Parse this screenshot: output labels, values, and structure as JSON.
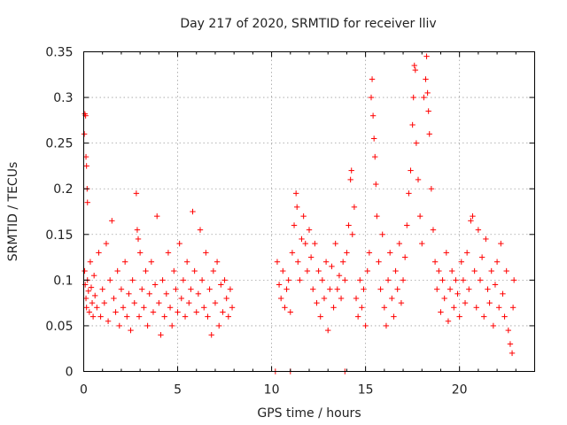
{
  "chart_data": {
    "type": "scatter",
    "title": "Day 217 of 2020, SRMTID for receiver lliv",
    "xlabel": "GPS time / hours",
    "ylabel": "SRMTID / TECUs",
    "xlim": [
      0,
      24
    ],
    "ylim": [
      0,
      0.35
    ],
    "xticks": [
      0,
      5,
      10,
      15,
      20
    ],
    "yticks": [
      0,
      0.05,
      0.1,
      0.15,
      0.2,
      0.25,
      0.3,
      0.35
    ],
    "xtick_labels": [
      "0",
      "5",
      "10",
      "15",
      "20"
    ],
    "ytick_labels": [
      "0",
      "0.05",
      "0.1",
      "0.15",
      "0.2",
      "0.25",
      "0.3",
      "0.35"
    ],
    "grid": true,
    "marker": "+",
    "color": "#ff0000",
    "series": [
      {
        "name": "SRMTID",
        "points": [
          [
            0.03,
            0.26
          ],
          [
            0.06,
            0.282
          ],
          [
            0.1,
            0.28
          ],
          [
            0.12,
            0.235
          ],
          [
            0.15,
            0.225
          ],
          [
            0.18,
            0.2
          ],
          [
            0.2,
            0.185
          ],
          [
            0.05,
            0.11
          ],
          [
            0.08,
            0.095
          ],
          [
            0.12,
            0.08
          ],
          [
            0.15,
            0.07
          ],
          [
            0.2,
            0.1
          ],
          [
            0.25,
            0.088
          ],
          [
            0.3,
            0.065
          ],
          [
            0.35,
            0.12
          ],
          [
            0.4,
            0.092
          ],
          [
            0.45,
            0.075
          ],
          [
            0.5,
            0.06
          ],
          [
            0.55,
            0.105
          ],
          [
            0.6,
            0.083
          ],
          [
            0.7,
            0.07
          ],
          [
            0.8,
            0.13
          ],
          [
            0.9,
            0.06
          ],
          [
            1.0,
            0.09
          ],
          [
            1.1,
            0.075
          ],
          [
            1.2,
            0.14
          ],
          [
            1.3,
            0.055
          ],
          [
            1.4,
            0.1
          ],
          [
            1.5,
            0.165
          ],
          [
            1.6,
            0.08
          ],
          [
            1.7,
            0.065
          ],
          [
            1.8,
            0.11
          ],
          [
            1.9,
            0.05
          ],
          [
            2.0,
            0.09
          ],
          [
            2.1,
            0.07
          ],
          [
            2.2,
            0.12
          ],
          [
            2.3,
            0.06
          ],
          [
            2.4,
            0.085
          ],
          [
            2.5,
            0.045
          ],
          [
            2.6,
            0.1
          ],
          [
            2.7,
            0.075
          ],
          [
            2.8,
            0.195
          ],
          [
            2.85,
            0.155
          ],
          [
            2.9,
            0.145
          ],
          [
            2.95,
            0.06
          ],
          [
            3.0,
            0.13
          ],
          [
            3.1,
            0.09
          ],
          [
            3.2,
            0.07
          ],
          [
            3.3,
            0.11
          ],
          [
            3.4,
            0.05
          ],
          [
            3.5,
            0.085
          ],
          [
            3.6,
            0.12
          ],
          [
            3.7,
            0.065
          ],
          [
            3.8,
            0.095
          ],
          [
            3.9,
            0.17
          ],
          [
            4.0,
            0.075
          ],
          [
            4.1,
            0.04
          ],
          [
            4.2,
            0.1
          ],
          [
            4.3,
            0.06
          ],
          [
            4.4,
            0.085
          ],
          [
            4.5,
            0.13
          ],
          [
            4.6,
            0.07
          ],
          [
            4.7,
            0.05
          ],
          [
            4.8,
            0.11
          ],
          [
            4.9,
            0.09
          ],
          [
            5.0,
            0.065
          ],
          [
            5.1,
            0.14
          ],
          [
            5.2,
            0.08
          ],
          [
            5.3,
            0.1
          ],
          [
            5.4,
            0.06
          ],
          [
            5.5,
            0.12
          ],
          [
            5.6,
            0.075
          ],
          [
            5.7,
            0.09
          ],
          [
            5.8,
            0.175
          ],
          [
            5.9,
            0.11
          ],
          [
            6.0,
            0.065
          ],
          [
            6.1,
            0.085
          ],
          [
            6.2,
            0.155
          ],
          [
            6.3,
            0.1
          ],
          [
            6.4,
            0.07
          ],
          [
            6.5,
            0.13
          ],
          [
            6.6,
            0.06
          ],
          [
            6.7,
            0.09
          ],
          [
            6.8,
            0.04
          ],
          [
            6.9,
            0.11
          ],
          [
            7.0,
            0.075
          ],
          [
            7.1,
            0.12
          ],
          [
            7.2,
            0.05
          ],
          [
            7.3,
            0.095
          ],
          [
            7.4,
            0.065
          ],
          [
            7.5,
            0.1
          ],
          [
            7.6,
            0.08
          ],
          [
            7.7,
            0.06
          ],
          [
            7.8,
            0.09
          ],
          [
            7.9,
            0.07
          ],
          [
            10.2,
            0.0
          ],
          [
            11.0,
            0.0
          ],
          [
            13.9,
            0.0
          ],
          [
            10.3,
            0.12
          ],
          [
            10.4,
            0.095
          ],
          [
            10.5,
            0.08
          ],
          [
            10.6,
            0.11
          ],
          [
            10.7,
            0.07
          ],
          [
            10.8,
            0.09
          ],
          [
            10.9,
            0.1
          ],
          [
            11.0,
            0.065
          ],
          [
            11.1,
            0.13
          ],
          [
            11.2,
            0.16
          ],
          [
            11.3,
            0.195
          ],
          [
            11.35,
            0.18
          ],
          [
            11.4,
            0.12
          ],
          [
            11.5,
            0.1
          ],
          [
            11.6,
            0.145
          ],
          [
            11.7,
            0.17
          ],
          [
            11.8,
            0.14
          ],
          [
            11.9,
            0.11
          ],
          [
            12.0,
            0.155
          ],
          [
            12.1,
            0.125
          ],
          [
            12.2,
            0.09
          ],
          [
            12.3,
            0.14
          ],
          [
            12.4,
            0.075
          ],
          [
            12.5,
            0.11
          ],
          [
            12.6,
            0.06
          ],
          [
            12.7,
            0.1
          ],
          [
            12.8,
            0.08
          ],
          [
            12.9,
            0.12
          ],
          [
            13.0,
            0.045
          ],
          [
            13.1,
            0.09
          ],
          [
            13.2,
            0.115
          ],
          [
            13.3,
            0.07
          ],
          [
            13.4,
            0.14
          ],
          [
            13.5,
            0.09
          ],
          [
            13.6,
            0.105
          ],
          [
            13.7,
            0.08
          ],
          [
            13.8,
            0.12
          ],
          [
            13.9,
            0.1
          ],
          [
            14.0,
            0.13
          ],
          [
            14.1,
            0.16
          ],
          [
            14.2,
            0.21
          ],
          [
            14.25,
            0.22
          ],
          [
            14.3,
            0.15
          ],
          [
            14.4,
            0.18
          ],
          [
            14.5,
            0.08
          ],
          [
            14.6,
            0.06
          ],
          [
            14.7,
            0.1
          ],
          [
            14.8,
            0.07
          ],
          [
            14.9,
            0.09
          ],
          [
            15.0,
            0.05
          ],
          [
            15.1,
            0.11
          ],
          [
            15.2,
            0.13
          ],
          [
            15.3,
            0.3
          ],
          [
            15.35,
            0.32
          ],
          [
            15.4,
            0.28
          ],
          [
            15.45,
            0.255
          ],
          [
            15.5,
            0.235
          ],
          [
            15.55,
            0.205
          ],
          [
            15.6,
            0.17
          ],
          [
            15.7,
            0.12
          ],
          [
            15.8,
            0.09
          ],
          [
            15.9,
            0.15
          ],
          [
            16.0,
            0.07
          ],
          [
            16.1,
            0.05
          ],
          [
            16.2,
            0.1
          ],
          [
            16.3,
            0.13
          ],
          [
            16.4,
            0.08
          ],
          [
            16.5,
            0.06
          ],
          [
            16.6,
            0.11
          ],
          [
            16.7,
            0.09
          ],
          [
            16.8,
            0.14
          ],
          [
            16.9,
            0.075
          ],
          [
            17.0,
            0.1
          ],
          [
            17.1,
            0.125
          ],
          [
            17.2,
            0.16
          ],
          [
            17.3,
            0.195
          ],
          [
            17.4,
            0.22
          ],
          [
            17.5,
            0.27
          ],
          [
            17.55,
            0.3
          ],
          [
            17.6,
            0.335
          ],
          [
            17.65,
            0.33
          ],
          [
            17.7,
            0.25
          ],
          [
            17.8,
            0.21
          ],
          [
            17.9,
            0.17
          ],
          [
            18.0,
            0.14
          ],
          [
            18.1,
            0.3
          ],
          [
            18.2,
            0.32
          ],
          [
            18.25,
            0.345
          ],
          [
            18.3,
            0.305
          ],
          [
            18.35,
            0.285
          ],
          [
            18.4,
            0.26
          ],
          [
            18.5,
            0.2
          ],
          [
            18.6,
            0.155
          ],
          [
            18.7,
            0.12
          ],
          [
            18.8,
            0.09
          ],
          [
            18.9,
            0.11
          ],
          [
            19.0,
            0.065
          ],
          [
            19.1,
            0.1
          ],
          [
            19.2,
            0.08
          ],
          [
            19.3,
            0.13
          ],
          [
            19.4,
            0.055
          ],
          [
            19.5,
            0.09
          ],
          [
            19.6,
            0.11
          ],
          [
            19.7,
            0.07
          ],
          [
            19.8,
            0.1
          ],
          [
            19.9,
            0.085
          ],
          [
            20.0,
            0.06
          ],
          [
            20.1,
            0.12
          ],
          [
            20.2,
            0.1
          ],
          [
            20.3,
            0.075
          ],
          [
            20.4,
            0.13
          ],
          [
            20.5,
            0.09
          ],
          [
            20.6,
            0.165
          ],
          [
            20.7,
            0.17
          ],
          [
            20.8,
            0.11
          ],
          [
            20.9,
            0.07
          ],
          [
            21.0,
            0.155
          ],
          [
            21.1,
            0.1
          ],
          [
            21.2,
            0.125
          ],
          [
            21.3,
            0.06
          ],
          [
            21.4,
            0.145
          ],
          [
            21.5,
            0.09
          ],
          [
            21.6,
            0.075
          ],
          [
            21.7,
            0.11
          ],
          [
            21.8,
            0.05
          ],
          [
            21.9,
            0.095
          ],
          [
            22.0,
            0.12
          ],
          [
            22.1,
            0.07
          ],
          [
            22.2,
            0.14
          ],
          [
            22.3,
            0.085
          ],
          [
            22.4,
            0.06
          ],
          [
            22.5,
            0.11
          ],
          [
            22.6,
            0.045
          ],
          [
            22.7,
            0.03
          ],
          [
            22.8,
            0.02
          ],
          [
            22.85,
            0.07
          ],
          [
            22.9,
            0.1
          ]
        ]
      }
    ]
  }
}
